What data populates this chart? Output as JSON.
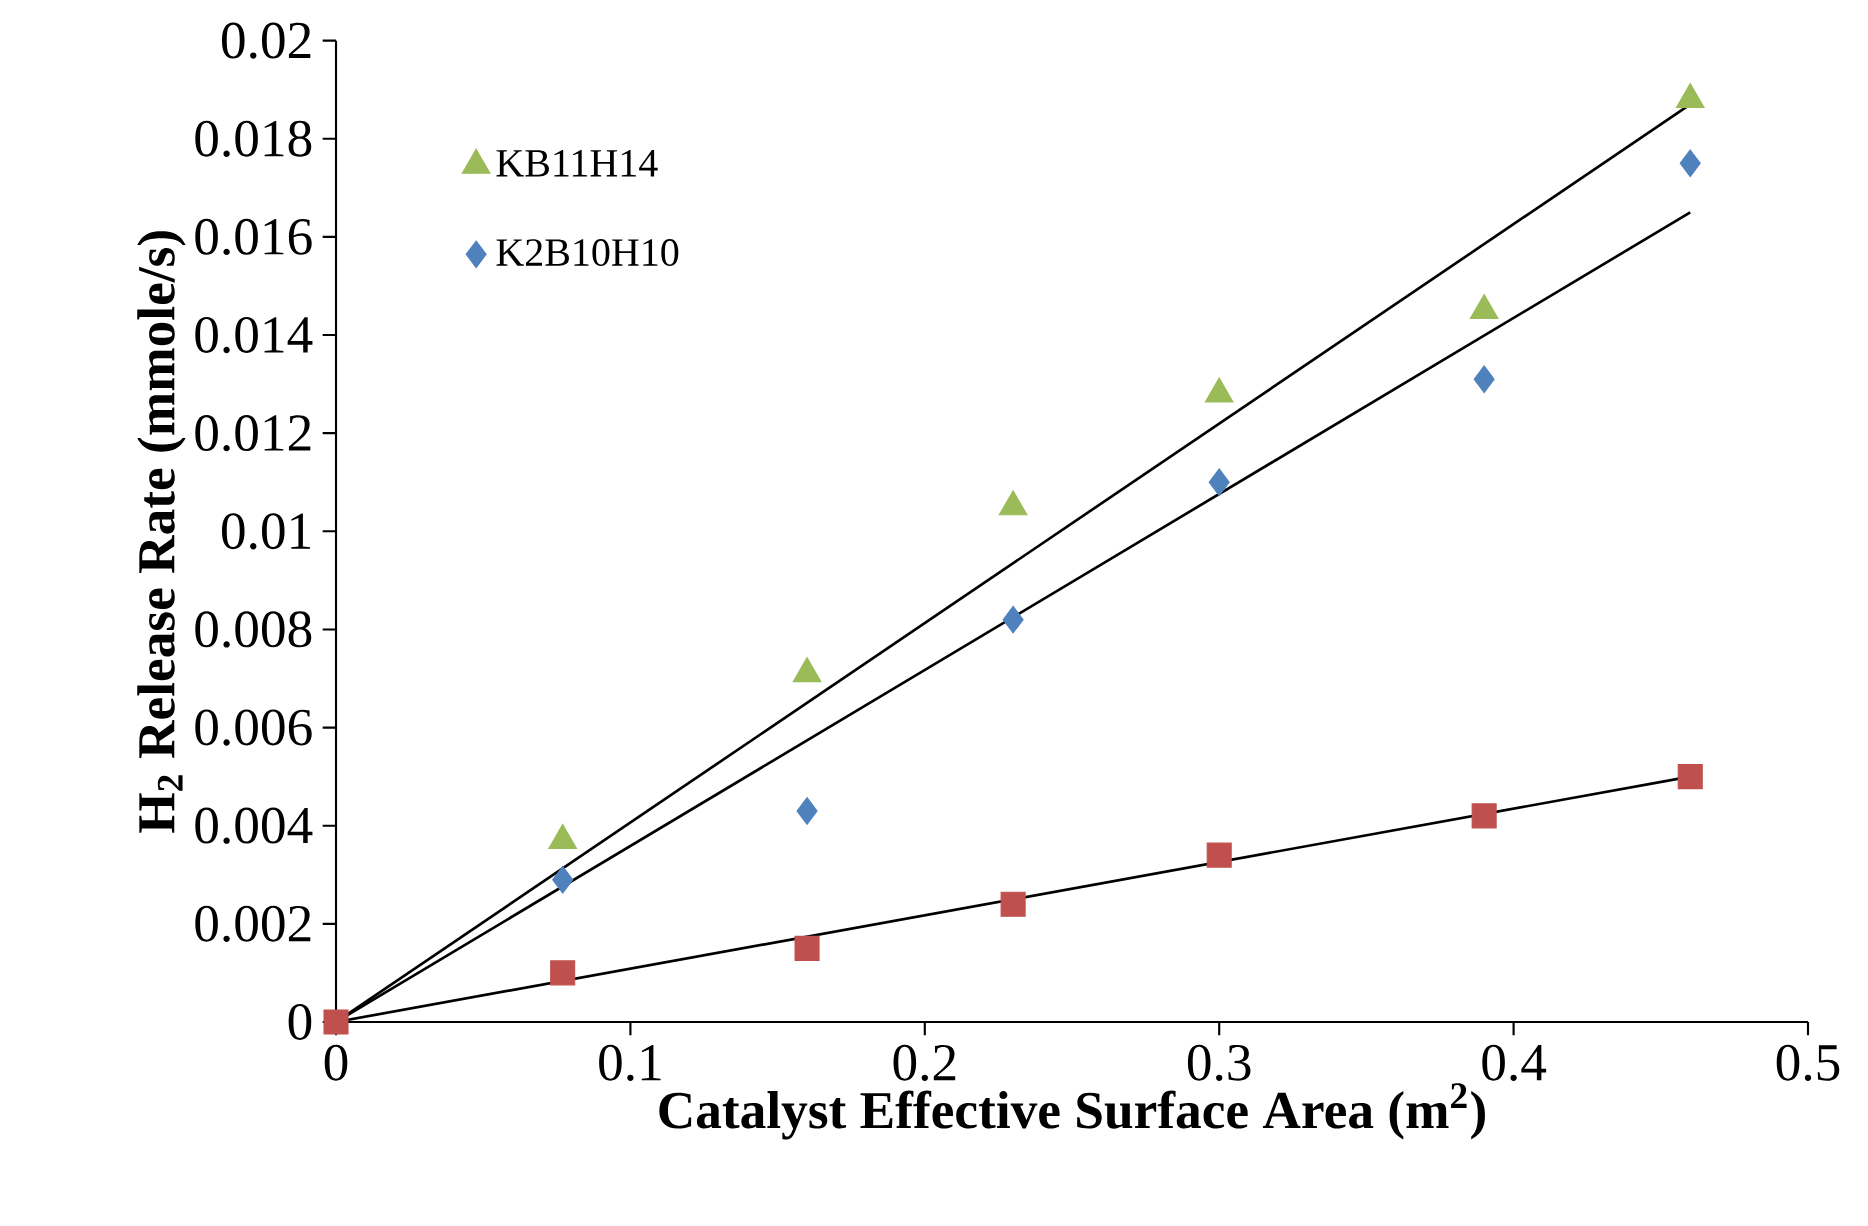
{
  "chart_data": {
    "type": "scatter",
    "xlabel": "Catalyst Effective Surface Area (m$^{2}$)",
    "ylabel": "H$_{2}$ Release Rate (mmole/s)",
    "xlim": [
      0,
      0.5
    ],
    "ylim": [
      0,
      0.02
    ],
    "xticks": [
      0,
      0.1,
      0.2,
      0.3,
      0.4,
      0.5
    ],
    "yticks": [
      0,
      0.002,
      0.004,
      0.006,
      0.008,
      0.01,
      0.012,
      0.014,
      0.016,
      0.018,
      0.02
    ],
    "grid": false,
    "legend": "top left",
    "series": [
      {
        "name": "KB11H14",
        "color": "#9bbb59",
        "marker": "triangle",
        "x": [
          0.077,
          0.16,
          0.23,
          0.3,
          0.39,
          0.46
        ],
        "values": [
          0.0037,
          0.0071,
          0.0105,
          0.0128,
          0.0145,
          0.0188
        ]
      },
      {
        "name": "K2B10H10",
        "color": "#4f81bd",
        "marker": "diamond",
        "x": [
          0.077,
          0.16,
          0.23,
          0.3,
          0.39,
          0.46
        ],
        "values": [
          0.0029,
          0.0043,
          0.0082,
          0.011,
          0.0131,
          0.0175
        ]
      },
      {
        "color": "#c0504d",
        "marker": "square",
        "x": [
          0,
          0.077,
          0.16,
          0.23,
          0.3,
          0.39,
          0.46
        ],
        "values": [
          0,
          0.001,
          0.0015,
          0.0024,
          0.0034,
          0.0042,
          0.005
        ]
      },
      {
        "type": "line",
        "color": "#000000",
        "marker": "none",
        "x": [
          0,
          0.46
        ],
        "values": [
          0,
          0.0187
        ]
      },
      {
        "type": "line",
        "color": "#000000",
        "marker": "none",
        "x": [
          0,
          0.46
        ],
        "values": [
          0,
          0.0165
        ]
      },
      {
        "type": "line",
        "color": "#000000",
        "marker": "none",
        "x": [
          0,
          0.46
        ],
        "values": [
          0,
          0.005
        ]
      }
    ]
  }
}
